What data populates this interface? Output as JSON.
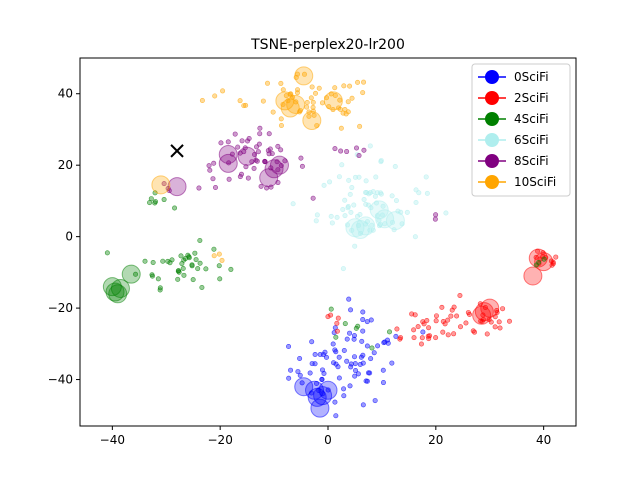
{
  "chart_data": {
    "type": "scatter",
    "title": "TSNE-perplex20-lr200",
    "xlabel": "",
    "ylabel": "",
    "xlim": [
      -46,
      46
    ],
    "ylim": [
      -53,
      50
    ],
    "xticks": [
      -40,
      -20,
      0,
      20,
      40
    ],
    "yticks": [
      -40,
      -20,
      0,
      20,
      40
    ],
    "grid": false,
    "legend_position": "top-right",
    "marker": {
      "x": -28,
      "y": 24,
      "symbol": "x",
      "color": "#000000"
    },
    "series": [
      {
        "name": "0SciFi",
        "color": "#0000ff",
        "big_points": [
          [
            -4.5,
            -42
          ],
          [
            -2.5,
            -43
          ],
          [
            -1,
            -44.5
          ],
          [
            -2,
            -45
          ],
          [
            0,
            -43
          ],
          [
            -1.5,
            -48
          ]
        ],
        "clusters": [
          {
            "cx": 3,
            "cy": -37,
            "sx": 5,
            "sy": 5,
            "n": 70
          },
          {
            "cx": 7,
            "cy": -25,
            "sx": 5,
            "sy": 3,
            "n": 14
          }
        ]
      },
      {
        "name": "2SciFi",
        "color": "#ff0000",
        "big_points": [
          [
            39,
            -6
          ],
          [
            40,
            -7
          ],
          [
            38,
            -11
          ],
          [
            28.5,
            -22
          ],
          [
            29,
            -21
          ],
          [
            30,
            -20
          ]
        ],
        "clusters": [
          {
            "cx": 40,
            "cy": -7,
            "sx": 1.5,
            "sy": 1.5,
            "n": 12
          },
          {
            "cx": 28,
            "cy": -23,
            "sx": 3,
            "sy": 3,
            "n": 30
          },
          {
            "cx": 17,
            "cy": -25,
            "sx": 4,
            "sy": 3,
            "n": 25
          },
          {
            "cx": 2,
            "cy": -24,
            "sx": 2,
            "sy": 2,
            "n": 5
          }
        ]
      },
      {
        "name": "4SciFi",
        "color": "#008000",
        "big_points": [
          [
            -40,
            -14
          ],
          [
            -39,
            -16
          ],
          [
            -38.5,
            -14.5
          ],
          [
            -36.5,
            -10.5
          ],
          [
            -39.5,
            -15.5
          ]
        ],
        "clusters": [
          {
            "cx": -27,
            "cy": -8,
            "sx": 4,
            "sy": 3,
            "n": 40
          },
          {
            "cx": -32,
            "cy": 10,
            "sx": 1.3,
            "sy": 1,
            "n": 7
          },
          {
            "cx": 6,
            "cy": -25,
            "sx": 3,
            "sy": 4,
            "n": 7
          },
          {
            "cx": 39,
            "cy": -7,
            "sx": 1,
            "sy": 1,
            "n": 3
          }
        ]
      },
      {
        "name": "6SciFi",
        "color": "#afeeee",
        "big_points": [
          [
            5,
            2.5
          ],
          [
            6,
            2
          ],
          [
            9.5,
            7.5
          ],
          [
            10.5,
            5
          ],
          [
            12.5,
            4.5
          ],
          [
            7,
            3
          ]
        ],
        "clusters": [
          {
            "cx": 8,
            "cy": 8,
            "sx": 5,
            "sy": 5,
            "n": 70
          },
          {
            "cx": 5,
            "cy": 21,
            "sx": 3,
            "sy": 2,
            "n": 8
          }
        ]
      },
      {
        "name": "8SciFi",
        "color": "#800080",
        "big_points": [
          [
            -18.5,
            23
          ],
          [
            -15,
            22.5
          ],
          [
            -10,
            19
          ],
          [
            -9,
            20
          ],
          [
            -11,
            16.5
          ],
          [
            -18.5,
            20.5
          ],
          [
            -28,
            14
          ]
        ],
        "clusters": [
          {
            "cx": -14,
            "cy": 21,
            "sx": 5,
            "sy": 4,
            "n": 55
          },
          {
            "cx": -29,
            "cy": 14,
            "sx": 1,
            "sy": 1,
            "n": 3
          },
          {
            "cx": 3,
            "cy": 24,
            "sx": 3,
            "sy": 2,
            "n": 6
          },
          {
            "cx": 20,
            "cy": 6,
            "sx": 1,
            "sy": 1,
            "n": 2
          }
        ]
      },
      {
        "name": "10SciFi",
        "color": "#ffa500",
        "big_points": [
          [
            -4.5,
            45
          ],
          [
            -6,
            37
          ],
          [
            -8,
            38
          ],
          [
            -7,
            36
          ],
          [
            -3,
            32.5
          ],
          [
            1,
            38
          ],
          [
            -31,
            14.5
          ]
        ],
        "clusters": [
          {
            "cx": -3,
            "cy": 37,
            "sx": 6,
            "sy": 4,
            "n": 60
          },
          {
            "cx": -18,
            "cy": 39,
            "sx": 2,
            "sy": 1,
            "n": 4
          },
          {
            "cx": -20,
            "cy": -5,
            "sx": 1.5,
            "sy": 1,
            "n": 3
          }
        ]
      }
    ]
  }
}
